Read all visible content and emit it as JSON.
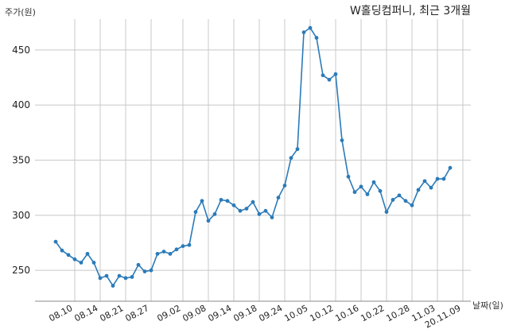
{
  "chart_data": {
    "type": "line",
    "title": "W홀딩컴퍼니, 최근 3개월",
    "ylabel": "주가(원)",
    "xlabel": "날짜(일)",
    "ylim": [
      222,
      478
    ],
    "yticks": [
      250,
      300,
      350,
      400,
      450
    ],
    "grid": true,
    "line_color": "#2b7bb9",
    "xtick_labels": [
      "08.10",
      "08.14",
      "08.21",
      "08.27",
      "09.02",
      "09.08",
      "09.14",
      "09.18",
      "09.24",
      "10.05",
      "10.12",
      "10.16",
      "10.22",
      "10.28",
      "11.03",
      "20.11.09"
    ],
    "xtick_positions": [
      3,
      7,
      11,
      15,
      20,
      24,
      28,
      32,
      36,
      40,
      44,
      48,
      52,
      56,
      60,
      64
    ],
    "series": [
      {
        "values": [
          276,
          268,
          264,
          260,
          257,
          265,
          257,
          243,
          245,
          236,
          245,
          243,
          244,
          255,
          249,
          250,
          265,
          267,
          265,
          269,
          272,
          273,
          303,
          313,
          295,
          301,
          314,
          313,
          309,
          304,
          306,
          312,
          301,
          304,
          298,
          316,
          327,
          352,
          360,
          466,
          470,
          461,
          427,
          423,
          428,
          368,
          335,
          321,
          326,
          319,
          330,
          322,
          303,
          314,
          318,
          313,
          309,
          323,
          331,
          325,
          333,
          333,
          343
        ]
      }
    ]
  }
}
